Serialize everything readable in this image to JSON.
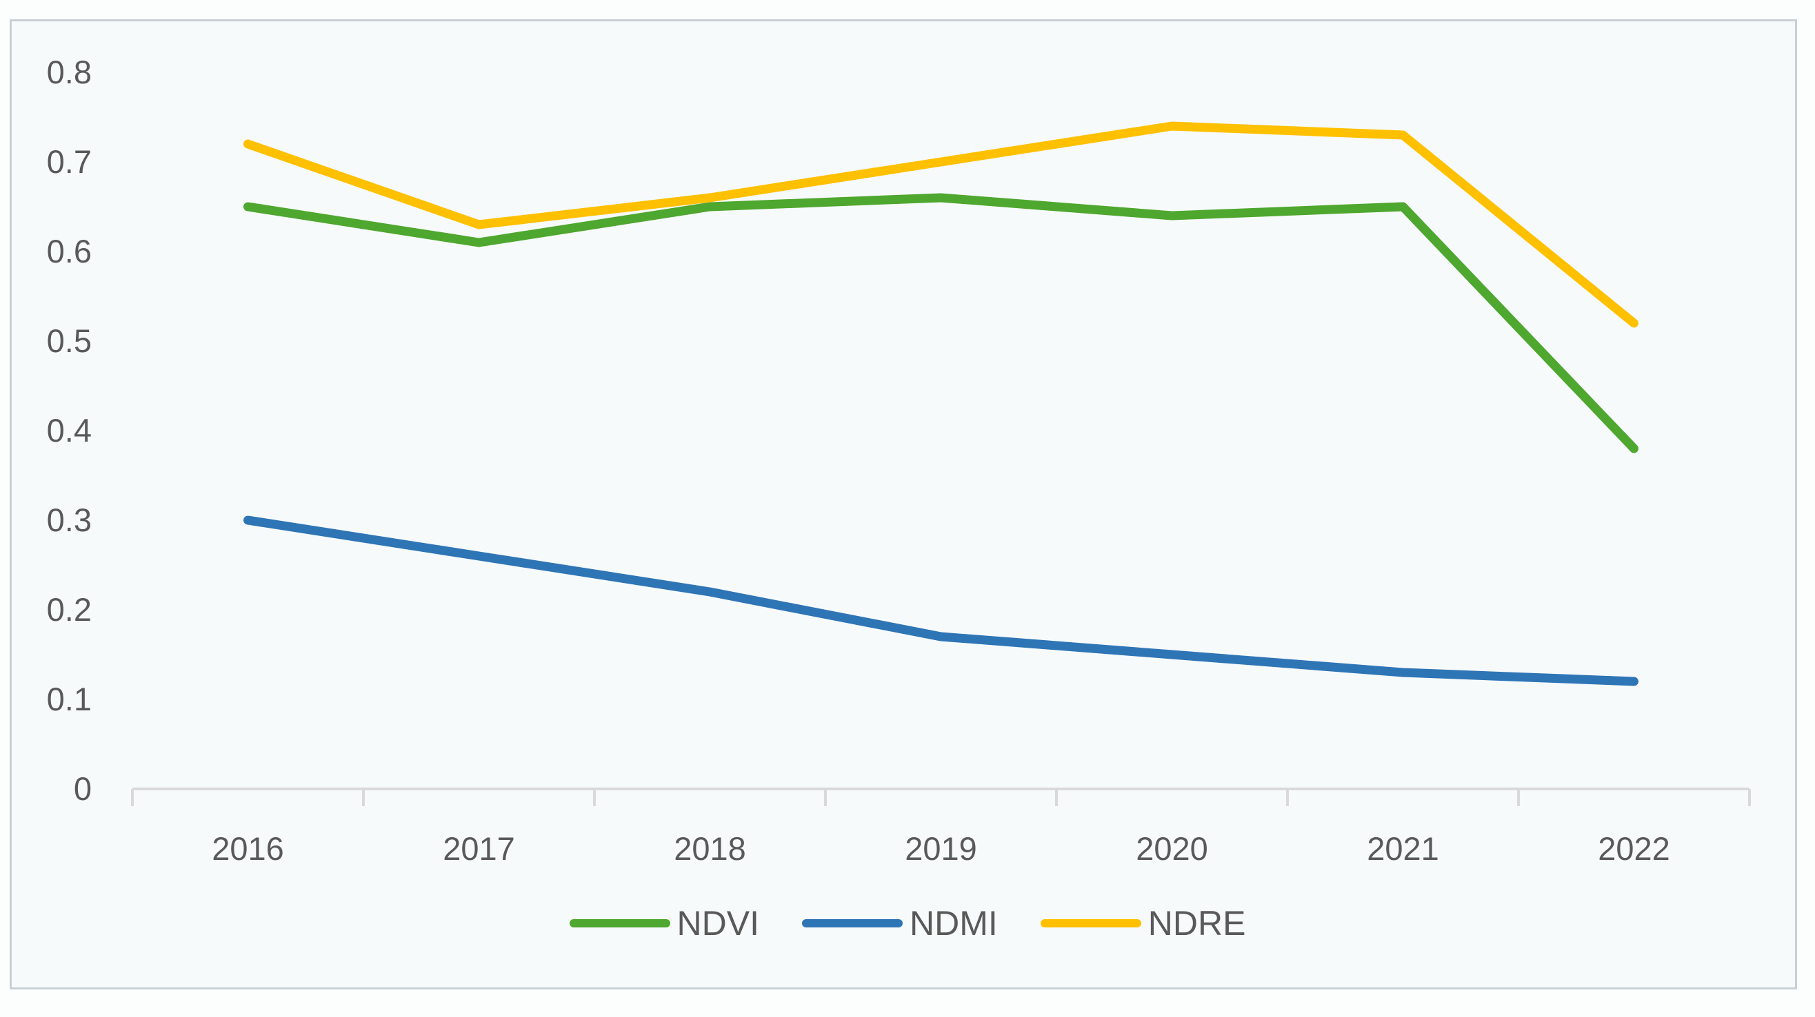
{
  "page": {
    "background_color": "#FCFEFE"
  },
  "chart": {
    "background_color": "#F7FAFB",
    "frame_border_color": "#C9CFD3",
    "axis_line_color": "#D9D9D9",
    "tick_text_color": "#595959",
    "legend_text_color": "#595959"
  },
  "chart_data": {
    "type": "line",
    "title": "",
    "xlabel": "",
    "ylabel": "",
    "categories": [
      "2016",
      "2017",
      "2018",
      "2019",
      "2020",
      "2021",
      "2022"
    ],
    "series": [
      {
        "name": "NDVI",
        "color": "#4EA72E",
        "values": [
          0.65,
          0.61,
          0.65,
          0.66,
          0.64,
          0.65,
          0.38
        ]
      },
      {
        "name": "NDMI",
        "color": "#2E75B6",
        "values": [
          0.3,
          0.26,
          0.22,
          0.17,
          0.15,
          0.13,
          0.12
        ]
      },
      {
        "name": "NDRE",
        "color": "#FFC000",
        "values": [
          0.72,
          0.63,
          0.66,
          0.7,
          0.74,
          0.73,
          0.52
        ]
      }
    ],
    "ylim": [
      0,
      0.8
    ],
    "y_tick_labels": [
      "0.8",
      "0.7",
      "0.6",
      "0.5",
      "0.4",
      "0.3",
      "0.2",
      "0.1",
      "0"
    ],
    "y_tick_values": [
      0.8,
      0.7,
      0.6,
      0.5,
      0.4,
      0.3,
      0.2,
      0.1,
      0
    ],
    "grid": false,
    "legend_position": "bottom"
  }
}
